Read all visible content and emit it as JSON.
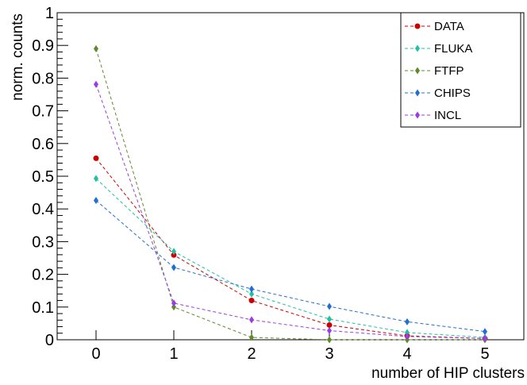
{
  "chart_data": {
    "type": "line",
    "title": "",
    "xlabel": "number of HIP clusters",
    "ylabel": "norm. counts",
    "xlim": [
      -0.5,
      5.5
    ],
    "ylim": [
      0,
      1
    ],
    "x_ticks": [
      0,
      1,
      2,
      3,
      4,
      5
    ],
    "x_tick_labels": [
      "0",
      "1",
      "2",
      "3",
      "4",
      "5"
    ],
    "y_ticks": [
      0,
      0.1,
      0.2,
      0.3,
      0.4,
      0.5,
      0.6,
      0.7,
      0.8,
      0.9,
      1
    ],
    "y_tick_labels": [
      "0",
      "0.1",
      "0.2",
      "0.3",
      "0.4",
      "0.5",
      "0.6",
      "0.7",
      "0.8",
      "0.9",
      "1"
    ],
    "grid": false,
    "legend_position": "top-right",
    "x": [
      0,
      1,
      2,
      3,
      4,
      5
    ],
    "series": [
      {
        "name": "DATA",
        "marker": "circle",
        "color": "#cc0000",
        "values": [
          0.555,
          0.259,
          0.12,
          0.045,
          0.012,
          0.004
        ]
      },
      {
        "name": "FLUKA",
        "marker": "diamond",
        "color": "#1fc2a0",
        "values": [
          0.493,
          0.27,
          0.14,
          0.063,
          0.022,
          0.007
        ]
      },
      {
        "name": "FTFP",
        "marker": "diamond",
        "color": "#5f8a2a",
        "values": [
          0.89,
          0.1,
          0.007,
          0.0,
          0.0,
          0.0
        ]
      },
      {
        "name": "CHIPS",
        "marker": "diamond",
        "color": "#1f6fd0",
        "values": [
          0.426,
          0.221,
          0.155,
          0.102,
          0.055,
          0.025
        ]
      },
      {
        "name": "INCL",
        "marker": "diamond",
        "color": "#9b3ae6",
        "values": [
          0.781,
          0.112,
          0.061,
          0.028,
          0.01,
          0.004
        ]
      }
    ]
  }
}
